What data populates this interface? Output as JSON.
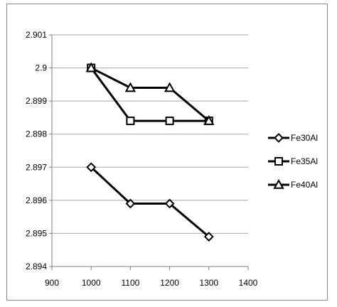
{
  "chart_data": {
    "type": "line",
    "title": "",
    "xlabel": "",
    "ylabel": "",
    "x": [
      1000,
      1100,
      1200,
      1300
    ],
    "xlim": [
      900,
      1400
    ],
    "ylim": [
      2.894,
      2.901
    ],
    "x_ticks": [
      "900",
      "1000",
      "1100",
      "1200",
      "1300",
      "1400"
    ],
    "y_ticks": [
      "2.894",
      "2.895",
      "2.896",
      "2.897",
      "2.898",
      "2.899",
      "2.9",
      "2.901"
    ],
    "grid": "horizontal",
    "legend_position": "right",
    "series": [
      {
        "name": "Fe30Al",
        "marker": "diamond",
        "values": [
          2.897,
          2.8959,
          2.8959,
          2.8949
        ]
      },
      {
        "name": "Fe35Al",
        "marker": "square",
        "values": [
          2.9,
          2.8984,
          2.8984,
          2.8984
        ]
      },
      {
        "name": "Fe40Al",
        "marker": "triangle",
        "values": [
          2.9,
          2.8994,
          2.8994,
          2.8984
        ]
      }
    ],
    "colors": {
      "line": "#000000",
      "grid": "#a6a6a6",
      "axis": "#7f7f7f",
      "frame": "#8a8a8a"
    }
  }
}
